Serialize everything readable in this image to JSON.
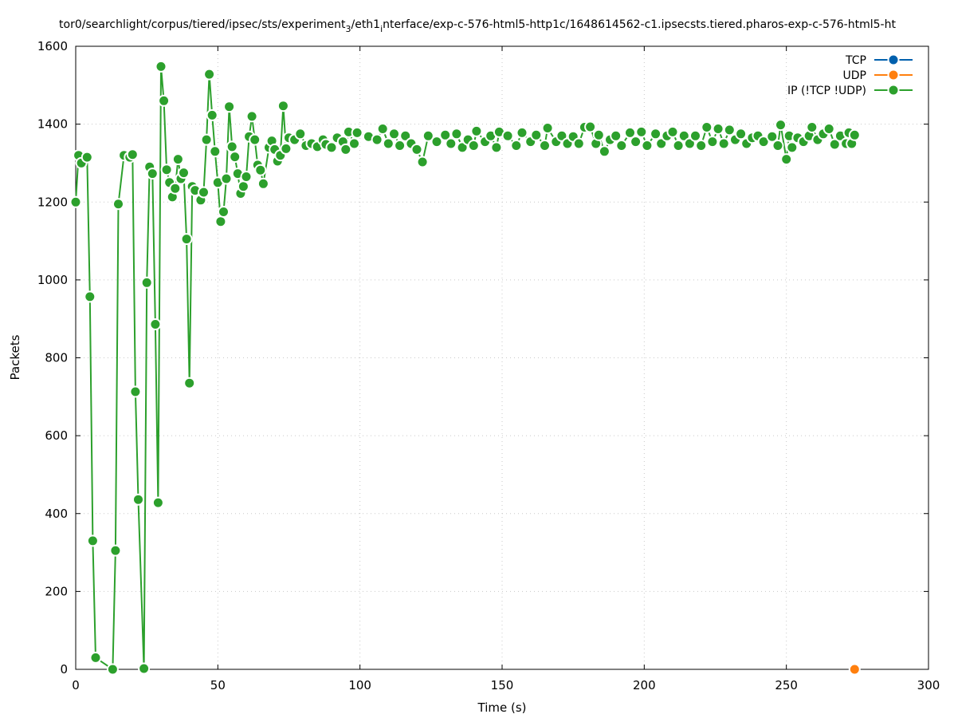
{
  "chart_data": {
    "type": "line",
    "title": "tor0/searchlight/corpus/tiered/ipsec/sts/experiment_3/eth1_interface/exp-c-576-html5-http1c/1648614562-c1.ipsecsts.tiered.pharos-exp-c-576-html5-ht",
    "title_parts": {
      "pre": "tor0/searchlight/corpus/tiered/ipsec/sts/experiment",
      "sub1": "3",
      "mid": "/eth1",
      "sub2": "i",
      "post": "nterface/exp-c-576-html5-http1c/1648614562-c1.ipsecsts.tiered.pharos-exp-c-576-html5-ht"
    },
    "xlabel": "Time (s)",
    "ylabel": "Packets",
    "xlim": [
      0,
      300
    ],
    "ylim": [
      0,
      1600
    ],
    "xticks": [
      "0",
      "50",
      "100",
      "150",
      "200",
      "250",
      "300"
    ],
    "yticks": [
      "0",
      "200",
      "400",
      "600",
      "800",
      "1000",
      "1200",
      "1400",
      "1600"
    ],
    "grid": true,
    "legend_position": "top-right",
    "series": [
      {
        "name": "TCP",
        "color": "#0060ad",
        "points": []
      },
      {
        "name": "UDP",
        "color": "#ff7f0e",
        "points": [
          [
            274,
            0
          ]
        ]
      },
      {
        "name": "IP (!TCP  !UDP)",
        "color": "#2ca02c",
        "points": [
          [
            0,
            1200
          ],
          [
            1,
            1320
          ],
          [
            2,
            1300
          ],
          [
            4,
            1315
          ],
          [
            5,
            957
          ],
          [
            6,
            330
          ],
          [
            7,
            30
          ],
          [
            13,
            0
          ],
          [
            14,
            305
          ],
          [
            15,
            1195
          ],
          [
            17,
            1320
          ],
          [
            19,
            1315
          ],
          [
            20,
            1322
          ],
          [
            21,
            713
          ],
          [
            22,
            436
          ],
          [
            24,
            2
          ],
          [
            25,
            993
          ],
          [
            26,
            1290
          ],
          [
            27,
            1273
          ],
          [
            28,
            886
          ],
          [
            29,
            428
          ],
          [
            30,
            1548
          ],
          [
            31,
            1460
          ],
          [
            32,
            1283
          ],
          [
            33,
            1250
          ],
          [
            34,
            1213
          ],
          [
            35,
            1235
          ],
          [
            36,
            1310
          ],
          [
            37,
            1260
          ],
          [
            38,
            1275
          ],
          [
            39,
            1105
          ],
          [
            40,
            735
          ],
          [
            41,
            1240
          ],
          [
            42,
            1230
          ],
          [
            44,
            1205
          ],
          [
            45,
            1225
          ],
          [
            46,
            1360
          ],
          [
            47,
            1528
          ],
          [
            48,
            1423
          ],
          [
            49,
            1330
          ],
          [
            50,
            1250
          ],
          [
            51,
            1150
          ],
          [
            52,
            1175
          ],
          [
            53,
            1260
          ],
          [
            54,
            1445
          ],
          [
            55,
            1342
          ],
          [
            56,
            1316
          ],
          [
            57,
            1273
          ],
          [
            58,
            1222
          ],
          [
            59,
            1240
          ],
          [
            60,
            1265
          ],
          [
            61,
            1368
          ],
          [
            62,
            1420
          ],
          [
            63,
            1360
          ],
          [
            64,
            1295
          ],
          [
            65,
            1282
          ],
          [
            66,
            1247
          ],
          [
            68,
            1340
          ],
          [
            69,
            1357
          ],
          [
            70,
            1335
          ],
          [
            71,
            1305
          ],
          [
            72,
            1320
          ],
          [
            73,
            1447
          ],
          [
            74,
            1337
          ],
          [
            75,
            1365
          ],
          [
            77,
            1360
          ],
          [
            79,
            1375
          ],
          [
            81,
            1345
          ],
          [
            83,
            1350
          ],
          [
            85,
            1342
          ],
          [
            87,
            1360
          ],
          [
            88,
            1348
          ],
          [
            90,
            1340
          ],
          [
            92,
            1365
          ],
          [
            94,
            1355
          ],
          [
            95,
            1335
          ],
          [
            96,
            1380
          ],
          [
            98,
            1350
          ],
          [
            99,
            1378
          ],
          [
            103,
            1368
          ],
          [
            106,
            1360
          ],
          [
            108,
            1388
          ],
          [
            110,
            1350
          ],
          [
            112,
            1375
          ],
          [
            114,
            1345
          ],
          [
            116,
            1370
          ],
          [
            118,
            1350
          ],
          [
            120,
            1335
          ],
          [
            122,
            1303
          ],
          [
            124,
            1370
          ],
          [
            127,
            1355
          ],
          [
            130,
            1372
          ],
          [
            132,
            1350
          ],
          [
            134,
            1375
          ],
          [
            136,
            1340
          ],
          [
            138,
            1360
          ],
          [
            140,
            1345
          ],
          [
            141,
            1382
          ],
          [
            144,
            1355
          ],
          [
            146,
            1370
          ],
          [
            148,
            1340
          ],
          [
            149,
            1380
          ],
          [
            152,
            1370
          ],
          [
            155,
            1345
          ],
          [
            157,
            1378
          ],
          [
            160,
            1355
          ],
          [
            162,
            1372
          ],
          [
            165,
            1345
          ],
          [
            166,
            1390
          ],
          [
            169,
            1355
          ],
          [
            171,
            1370
          ],
          [
            173,
            1350
          ],
          [
            175,
            1368
          ],
          [
            177,
            1350
          ],
          [
            179,
            1392
          ],
          [
            181,
            1393
          ],
          [
            183,
            1350
          ],
          [
            184,
            1372
          ],
          [
            186,
            1330
          ],
          [
            188,
            1360
          ],
          [
            190,
            1370
          ],
          [
            192,
            1345
          ],
          [
            195,
            1378
          ],
          [
            197,
            1355
          ],
          [
            199,
            1380
          ],
          [
            201,
            1345
          ],
          [
            204,
            1375
          ],
          [
            206,
            1350
          ],
          [
            208,
            1370
          ],
          [
            210,
            1380
          ],
          [
            212,
            1345
          ],
          [
            214,
            1370
          ],
          [
            216,
            1350
          ],
          [
            218,
            1370
          ],
          [
            220,
            1345
          ],
          [
            222,
            1392
          ],
          [
            224,
            1355
          ],
          [
            226,
            1388
          ],
          [
            228,
            1350
          ],
          [
            230,
            1385
          ],
          [
            232,
            1360
          ],
          [
            234,
            1375
          ],
          [
            236,
            1350
          ],
          [
            238,
            1365
          ],
          [
            240,
            1370
          ],
          [
            242,
            1355
          ],
          [
            245,
            1368
          ],
          [
            247,
            1345
          ],
          [
            248,
            1398
          ],
          [
            250,
            1310
          ],
          [
            251,
            1370
          ],
          [
            252,
            1340
          ],
          [
            254,
            1365
          ],
          [
            256,
            1355
          ],
          [
            258,
            1370
          ],
          [
            259,
            1392
          ],
          [
            261,
            1360
          ],
          [
            263,
            1375
          ],
          [
            265,
            1388
          ],
          [
            267,
            1348
          ],
          [
            269,
            1370
          ],
          [
            271,
            1350
          ],
          [
            272,
            1378
          ],
          [
            273,
            1350
          ],
          [
            274,
            1372
          ]
        ]
      }
    ]
  }
}
